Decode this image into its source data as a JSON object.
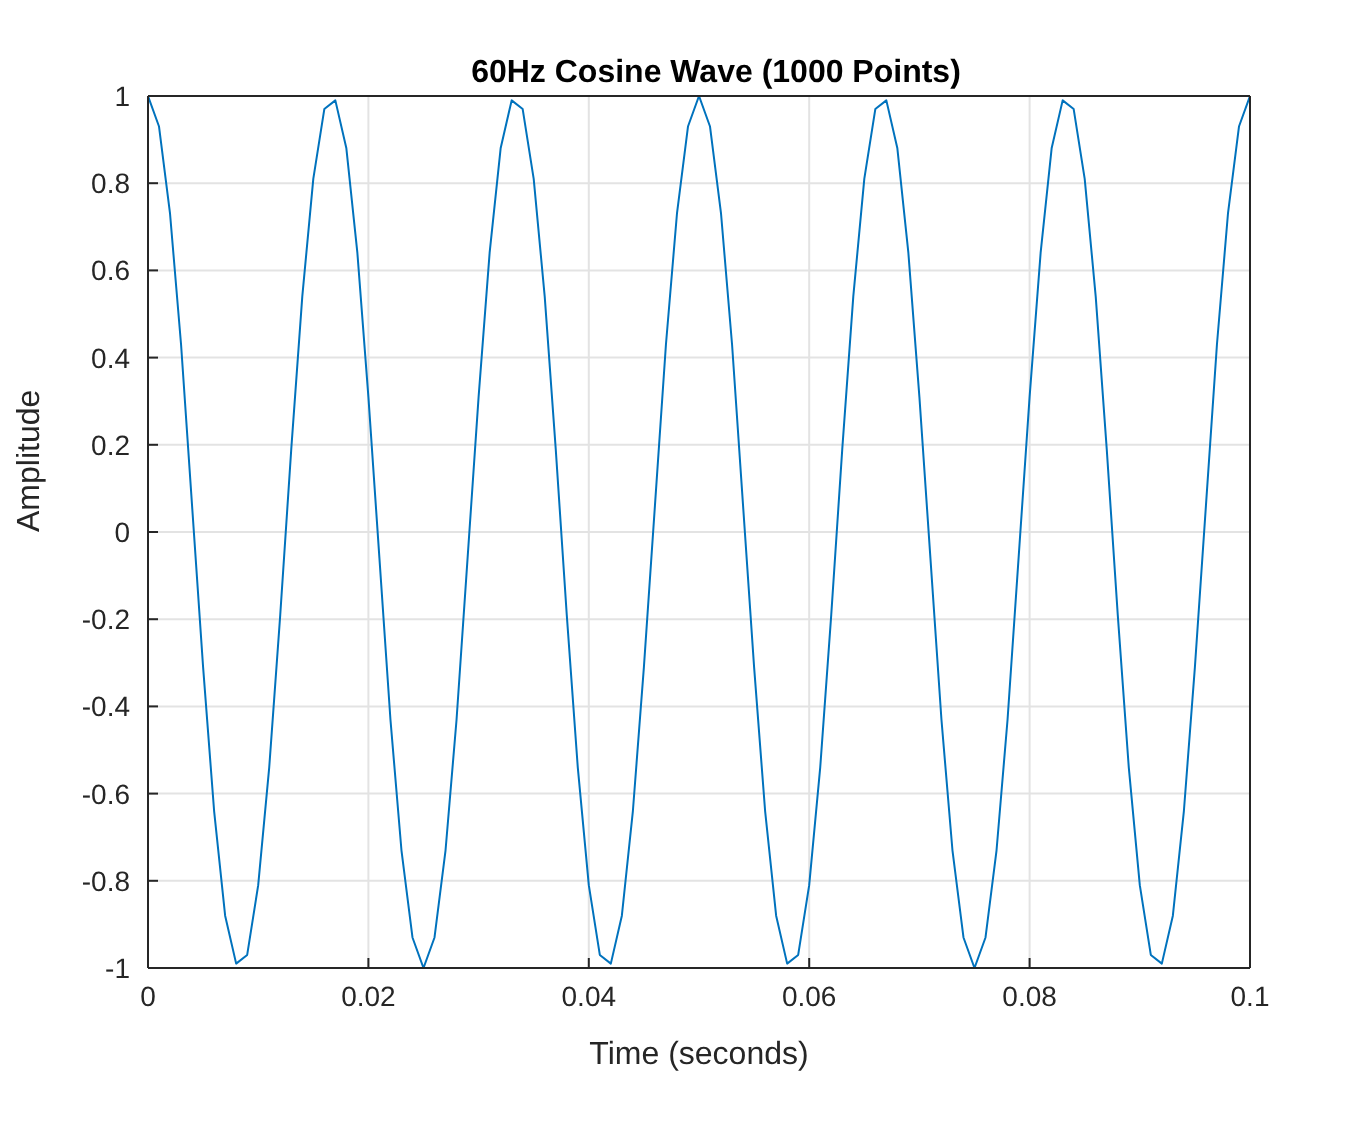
{
  "chart_data": {
    "type": "line",
    "title": "60Hz Cosine Wave (1000 Points)",
    "xlabel": "Time (seconds)",
    "ylabel": "Amplitude",
    "x": [
      0,
      0.001,
      0.002,
      0.003,
      0.004,
      0.005,
      0.006,
      0.007,
      0.008,
      0.009,
      0.01,
      0.011,
      0.012,
      0.013,
      0.014,
      0.015,
      0.016,
      0.017,
      0.018,
      0.019,
      0.02,
      0.021,
      0.022,
      0.023,
      0.024,
      0.025,
      0.026,
      0.027,
      0.028,
      0.029,
      0.03,
      0.031,
      0.032,
      0.033,
      0.034,
      0.035,
      0.036,
      0.037,
      0.038,
      0.039,
      0.04,
      0.041,
      0.042,
      0.043,
      0.044,
      0.045,
      0.046,
      0.047,
      0.048,
      0.049,
      0.05,
      0.051,
      0.052,
      0.053,
      0.054,
      0.055,
      0.056,
      0.057,
      0.058,
      0.059,
      0.06,
      0.061,
      0.062,
      0.063,
      0.064,
      0.065,
      0.066,
      0.067,
      0.068,
      0.069,
      0.07,
      0.071,
      0.072,
      0.073,
      0.074,
      0.075,
      0.076,
      0.077,
      0.078,
      0.079,
      0.08,
      0.081,
      0.082,
      0.083,
      0.084,
      0.085,
      0.086,
      0.087,
      0.088,
      0.089,
      0.09,
      0.091,
      0.092,
      0.093,
      0.094,
      0.095,
      0.096,
      0.097,
      0.098,
      0.099,
      0.1
    ],
    "series": [
      {
        "color": "#0072bd",
        "values": [
          1,
          0.93,
          0.73,
          0.43,
          0.06,
          -0.31,
          -0.64,
          -0.88,
          -0.99,
          -0.97,
          -0.81,
          -0.54,
          -0.19,
          0.19,
          0.54,
          0.81,
          0.97,
          0.99,
          0.88,
          0.64,
          0.31,
          -0.06,
          -0.43,
          -0.73,
          -0.93,
          -1,
          -0.93,
          -0.73,
          -0.43,
          -0.06,
          0.31,
          0.64,
          0.88,
          0.99,
          0.97,
          0.81,
          0.54,
          0.19,
          -0.19,
          -0.54,
          -0.81,
          -0.97,
          -0.99,
          -0.88,
          -0.64,
          -0.31,
          0.06,
          0.43,
          0.73,
          0.93,
          1,
          0.93,
          0.73,
          0.43,
          0.06,
          -0.31,
          -0.64,
          -0.88,
          -0.99,
          -0.97,
          -0.81,
          -0.54,
          -0.19,
          0.19,
          0.54,
          0.81,
          0.97,
          0.99,
          0.88,
          0.64,
          0.31,
          -0.06,
          -0.43,
          -0.73,
          -0.93,
          -1,
          -0.93,
          -0.73,
          -0.43,
          -0.06,
          0.31,
          0.64,
          0.88,
          0.99,
          0.97,
          0.81,
          0.54,
          0.19,
          -0.19,
          -0.54,
          -0.81,
          -0.97,
          -0.99,
          -0.88,
          -0.64,
          -0.31,
          0.06,
          0.43,
          0.73,
          0.93,
          1
        ]
      }
    ],
    "xlim": [
      0,
      0.1
    ],
    "xticks": [
      0,
      0.02,
      0.04,
      0.06,
      0.08,
      0.1
    ],
    "ylim": [
      -1,
      1
    ],
    "yticks": [
      -1,
      -0.8,
      -0.6,
      -0.4,
      -0.2,
      0,
      0.2,
      0.4,
      0.6,
      0.8,
      1
    ],
    "grid": true,
    "legend": false,
    "marker": "none",
    "line_style": "solid"
  }
}
